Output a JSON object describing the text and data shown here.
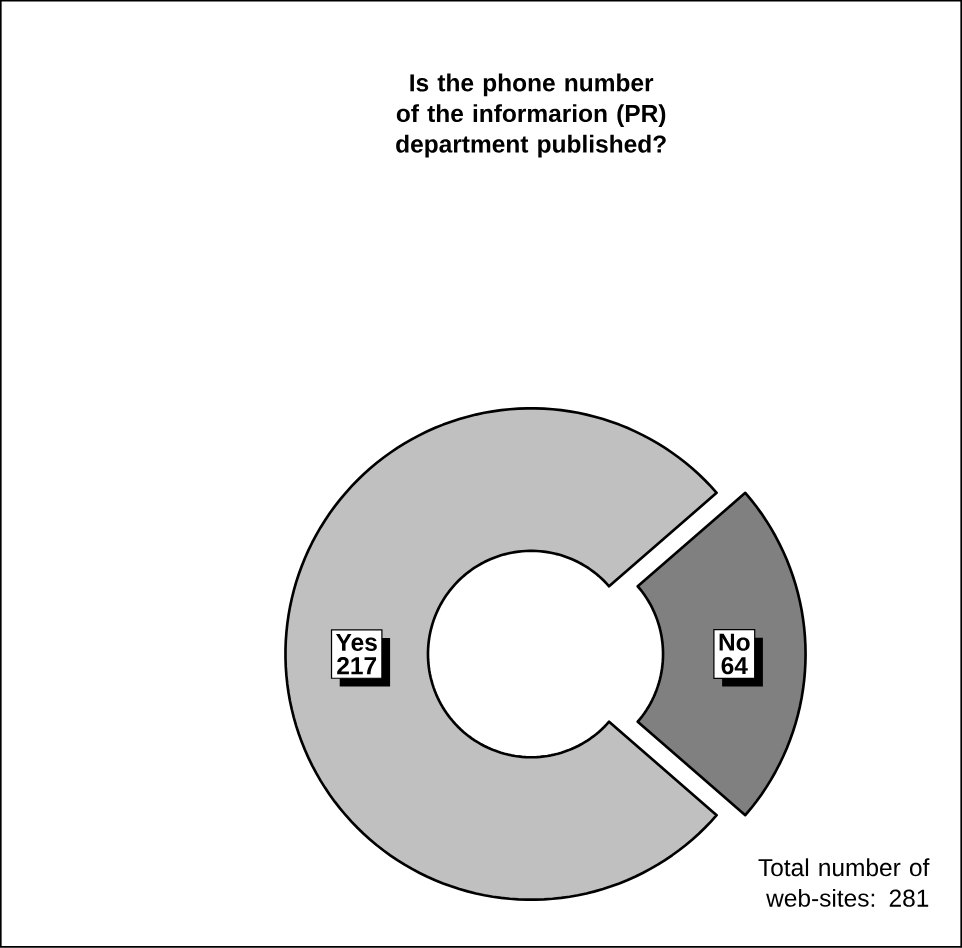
{
  "chart_data": {
    "type": "donut",
    "title": "Is the phone number of the informarion (PR) department published?",
    "categories": [
      "Yes",
      "No"
    ],
    "values": [
      217,
      64
    ],
    "colors": [
      "#c0c0c0",
      "#808080"
    ],
    "data_labels": true,
    "annotations": [
      "Total number of web-sites: 281"
    ]
  }
}
